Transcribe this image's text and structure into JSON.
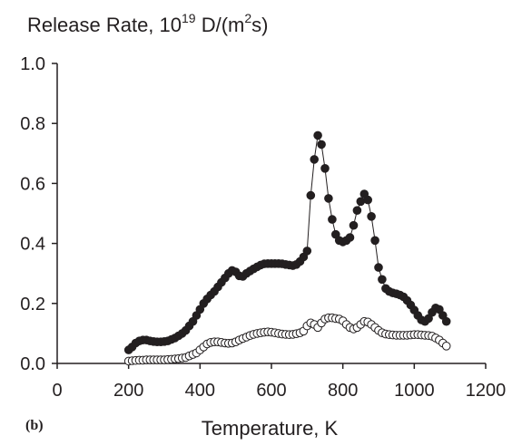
{
  "chart_data": {
    "type": "scatter",
    "title": "Release Rate, 10",
    "title_sup1": "19",
    "title_mid": " D/(m",
    "title_sup2": "2",
    "title_end": "s)",
    "xlabel": "Temperature, K",
    "panel_label": "(b)",
    "xlim": [
      0,
      1200
    ],
    "ylim": [
      0,
      1.0
    ],
    "x_ticks": [
      "0",
      "200",
      "400",
      "600",
      "800",
      "1000",
      "1200"
    ],
    "y_ticks": [
      "0.0",
      "0.2",
      "0.4",
      "0.6",
      "0.8",
      "1.0"
    ],
    "grid": false,
    "series": [
      {
        "marker": "filled-circle",
        "connected": true,
        "color": "#231f20",
        "x": [
          200,
          210,
          220,
          230,
          240,
          250,
          260,
          270,
          280,
          290,
          300,
          310,
          320,
          330,
          340,
          350,
          360,
          370,
          380,
          390,
          400,
          410,
          420,
          430,
          440,
          450,
          460,
          470,
          480,
          490,
          500,
          510,
          520,
          530,
          540,
          550,
          560,
          570,
          580,
          590,
          600,
          610,
          620,
          630,
          640,
          650,
          660,
          670,
          680,
          690,
          700,
          710,
          720,
          730,
          740,
          750,
          760,
          770,
          780,
          790,
          800,
          810,
          820,
          830,
          840,
          850,
          860,
          870,
          880,
          890,
          900,
          910,
          920,
          930,
          940,
          950,
          960,
          970,
          980,
          990,
          1000,
          1010,
          1020,
          1030,
          1040,
          1050,
          1060,
          1070,
          1080,
          1090
        ],
        "y": [
          0.045,
          0.055,
          0.068,
          0.075,
          0.078,
          0.078,
          0.075,
          0.073,
          0.072,
          0.072,
          0.073,
          0.075,
          0.08,
          0.085,
          0.092,
          0.1,
          0.11,
          0.125,
          0.14,
          0.16,
          0.18,
          0.2,
          0.215,
          0.228,
          0.24,
          0.255,
          0.27,
          0.285,
          0.3,
          0.31,
          0.305,
          0.292,
          0.29,
          0.3,
          0.308,
          0.315,
          0.322,
          0.328,
          0.332,
          0.333,
          0.333,
          0.333,
          0.333,
          0.332,
          0.33,
          0.328,
          0.326,
          0.33,
          0.34,
          0.355,
          0.375,
          0.56,
          0.68,
          0.76,
          0.73,
          0.65,
          0.55,
          0.48,
          0.43,
          0.41,
          0.405,
          0.41,
          0.42,
          0.46,
          0.51,
          0.54,
          0.565,
          0.545,
          0.49,
          0.41,
          0.32,
          0.28,
          0.25,
          0.24,
          0.235,
          0.232,
          0.228,
          0.222,
          0.21,
          0.195,
          0.178,
          0.16,
          0.145,
          0.14,
          0.15,
          0.17,
          0.185,
          0.18,
          0.16,
          0.14
        ]
      },
      {
        "marker": "open-circle",
        "connected": false,
        "color": "#231f20",
        "x": [
          200,
          210,
          220,
          230,
          240,
          250,
          260,
          270,
          280,
          290,
          300,
          310,
          320,
          330,
          340,
          350,
          360,
          370,
          380,
          390,
          400,
          410,
          420,
          430,
          440,
          450,
          460,
          470,
          480,
          490,
          500,
          510,
          520,
          530,
          540,
          550,
          560,
          570,
          580,
          590,
          600,
          610,
          620,
          630,
          640,
          650,
          660,
          670,
          680,
          690,
          700,
          710,
          720,
          730,
          740,
          750,
          760,
          770,
          780,
          790,
          800,
          810,
          820,
          830,
          840,
          850,
          860,
          870,
          880,
          890,
          900,
          910,
          920,
          930,
          940,
          950,
          960,
          970,
          980,
          990,
          1000,
          1010,
          1020,
          1030,
          1040,
          1050,
          1060,
          1070,
          1080,
          1090
        ],
        "y": [
          0.008,
          0.009,
          0.01,
          0.011,
          0.011,
          0.012,
          0.012,
          0.012,
          0.012,
          0.012,
          0.012,
          0.013,
          0.014,
          0.015,
          0.016,
          0.018,
          0.02,
          0.025,
          0.03,
          0.035,
          0.045,
          0.055,
          0.065,
          0.07,
          0.072,
          0.072,
          0.07,
          0.068,
          0.067,
          0.068,
          0.072,
          0.078,
          0.083,
          0.088,
          0.093,
          0.097,
          0.1,
          0.102,
          0.104,
          0.105,
          0.104,
          0.102,
          0.1,
          0.098,
          0.097,
          0.096,
          0.097,
          0.099,
          0.102,
          0.108,
          0.125,
          0.135,
          0.13,
          0.12,
          0.135,
          0.148,
          0.152,
          0.152,
          0.15,
          0.148,
          0.142,
          0.13,
          0.12,
          0.115,
          0.12,
          0.13,
          0.14,
          0.138,
          0.13,
          0.12,
          0.11,
          0.102,
          0.098,
          0.096,
          0.095,
          0.094,
          0.094,
          0.094,
          0.094,
          0.095,
          0.096,
          0.096,
          0.095,
          0.094,
          0.093,
          0.091,
          0.085,
          0.078,
          0.068,
          0.058
        ]
      }
    ]
  }
}
